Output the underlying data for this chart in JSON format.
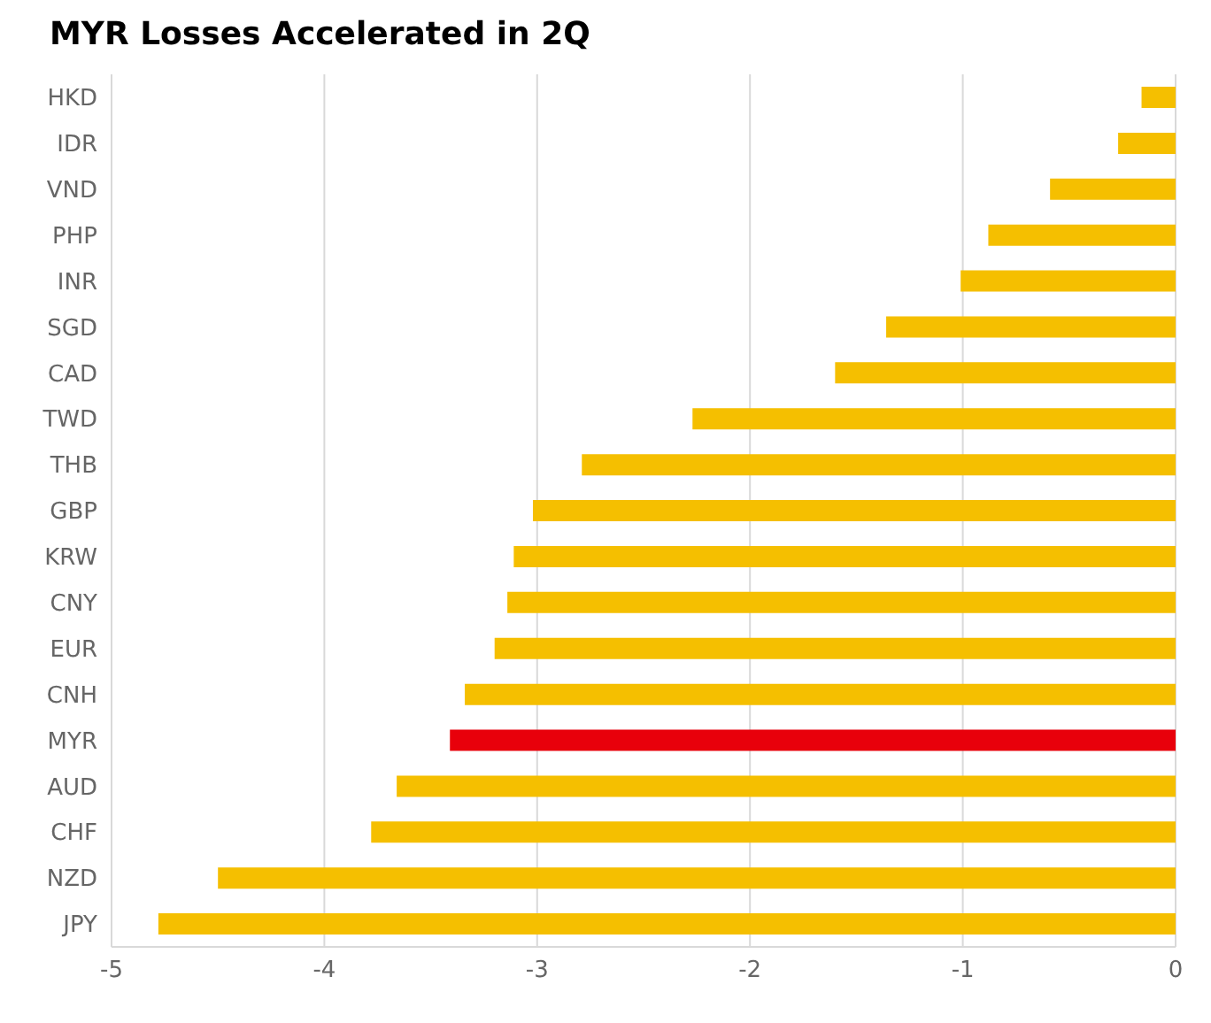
{
  "chart_data": {
    "type": "bar",
    "orientation": "horizontal",
    "title": "MYR Losses Accelerated in 2Q",
    "categories": [
      "HKD",
      "IDR",
      "VND",
      "PHP",
      "INR",
      "SGD",
      "CAD",
      "TWD",
      "THB",
      "GBP",
      "KRW",
      "CNY",
      "EUR",
      "CNH",
      "MYR",
      "AUD",
      "CHF",
      "NZD",
      "JPY"
    ],
    "values": [
      -0.16,
      -0.27,
      -0.59,
      -0.88,
      -1.01,
      -1.36,
      -1.6,
      -2.27,
      -2.79,
      -3.02,
      -3.11,
      -3.14,
      -3.2,
      -3.34,
      -3.41,
      -3.66,
      -3.78,
      -4.5,
      -4.78
    ],
    "colors": [
      "#f5bf00",
      "#f5bf00",
      "#f5bf00",
      "#f5bf00",
      "#f5bf00",
      "#f5bf00",
      "#f5bf00",
      "#f5bf00",
      "#f5bf00",
      "#f5bf00",
      "#f5bf00",
      "#f5bf00",
      "#f5bf00",
      "#f5bf00",
      "#e8000b",
      "#f5bf00",
      "#f5bf00",
      "#f5bf00",
      "#f5bf00"
    ],
    "xlim": [
      -5,
      0
    ],
    "xticks": [
      -5,
      -4,
      -3,
      -2,
      -1,
      0
    ],
    "grid": "x"
  }
}
